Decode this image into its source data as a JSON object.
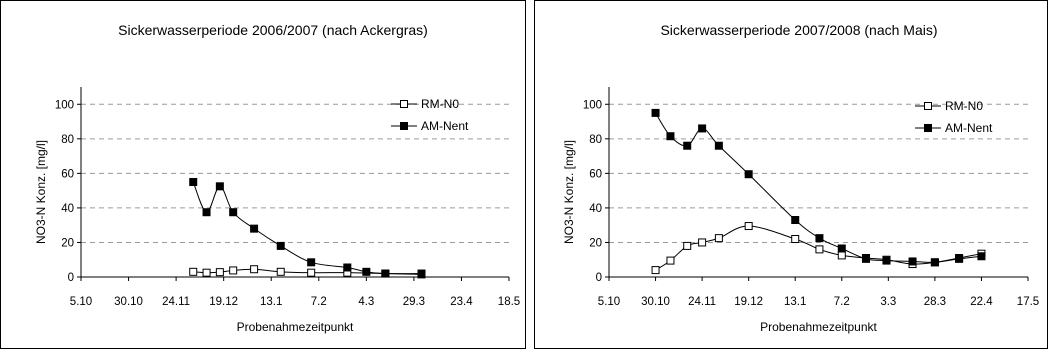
{
  "chart_data": [
    {
      "type": "line",
      "title": "Sickerwasserperiode 2006/2007 (nach Ackergras)",
      "xlabel": "Probenahmezeitpunkt",
      "ylabel": "NO3-N Konz. [mg/l]",
      "x_ticks": [
        "5.10",
        "30.10",
        "24.11",
        "19.12",
        "13.1",
        "7.2",
        "4.3",
        "29.3",
        "23.4",
        "18.5"
      ],
      "xlim": [
        0,
        225
      ],
      "y_ticks": [
        "0",
        "20",
        "40",
        "60",
        "80",
        "100"
      ],
      "ylim": [
        0,
        110
      ],
      "grid": "horizontal dashed",
      "legend": "top-right",
      "series": [
        {
          "name": "RM-N0",
          "marker": "open-square",
          "x": [
            59,
            66,
            73,
            80,
            91,
            105,
            121,
            140,
            160,
            179
          ],
          "y": [
            3,
            2.5,
            2.8,
            3.8,
            4.5,
            3,
            2.5,
            2.5,
            2,
            1.5
          ]
        },
        {
          "name": "AM-Nent",
          "marker": "filled-square",
          "x": [
            59,
            66,
            73,
            80,
            91,
            105,
            121,
            140,
            150,
            160,
            179
          ],
          "y": [
            55,
            37.5,
            52.5,
            37.5,
            28,
            18,
            8.5,
            5.5,
            3,
            2,
            2
          ]
        }
      ]
    },
    {
      "type": "line",
      "title": "Sickerwasserperiode 2007/2008 (nach Mais)",
      "xlabel": "Probenahmezeitpunkt",
      "ylabel": "NO3-N Konz. [mg/l]",
      "x_ticks": [
        "5.10",
        "30.10",
        "24.11",
        "19.12",
        "13.1",
        "7.2",
        "3.3",
        "28.3",
        "22.4",
        "17.5"
      ],
      "xlim": [
        0,
        225
      ],
      "y_ticks": [
        "0",
        "20",
        "40",
        "60",
        "80",
        "100"
      ],
      "ylim": [
        0,
        110
      ],
      "grid": "horizontal dashed",
      "legend": "top-right",
      "series": [
        {
          "name": "RM-N0",
          "marker": "open-square",
          "x": [
            25,
            33,
            42,
            50,
            59,
            75,
            100,
            113,
            125,
            138,
            149,
            163,
            175,
            188,
            200
          ],
          "y": [
            4,
            9.5,
            18,
            20,
            22.5,
            29.5,
            22,
            16,
            12.5,
            11,
            10,
            7.5,
            8.5,
            11,
            13.5
          ]
        },
        {
          "name": "AM-Nent",
          "marker": "filled-square",
          "x": [
            25,
            33,
            42,
            50,
            59,
            75,
            100,
            113,
            125,
            138,
            149,
            163,
            175,
            188,
            200
          ],
          "y": [
            95,
            81.5,
            76,
            86,
            76,
            59.5,
            33,
            22.5,
            16.5,
            10.5,
            9.5,
            9,
            8.5,
            10.5,
            12
          ]
        }
      ]
    }
  ]
}
